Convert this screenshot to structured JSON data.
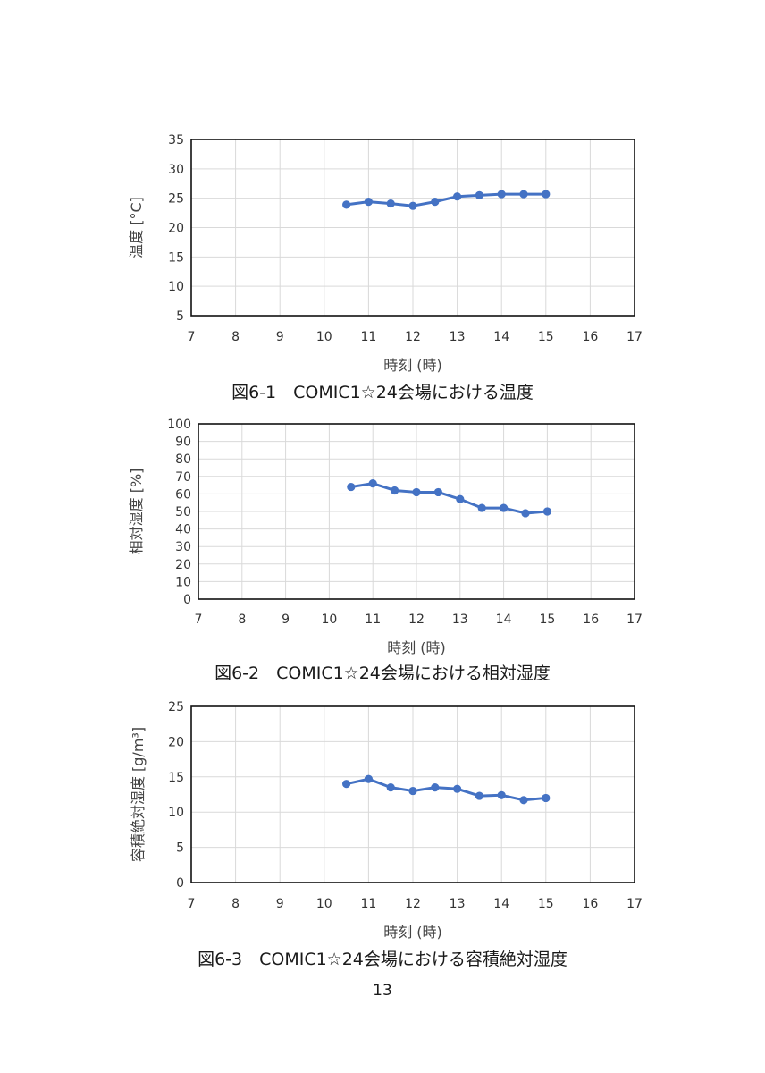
{
  "page_number": "13",
  "chart_data": [
    {
      "type": "line",
      "caption": "図6-1　COMIC1☆24会場における温度",
      "xlabel": "時刻 (時)",
      "ylabel": "温度 [°C]",
      "xlim": [
        7,
        17
      ],
      "ylim": [
        5,
        35
      ],
      "xticks": [
        7,
        8,
        9,
        10,
        11,
        12,
        13,
        14,
        15,
        16,
        17
      ],
      "yticks": [
        5,
        10,
        15,
        20,
        25,
        30,
        35
      ],
      "grid": true,
      "series_color": "#4472C4",
      "x": [
        10.5,
        11,
        11.5,
        12,
        12.5,
        13,
        13.5,
        14,
        14.5,
        15
      ],
      "y": [
        23.9,
        24.4,
        24.1,
        23.7,
        24.4,
        25.3,
        25.5,
        25.7,
        25.7,
        25.7
      ]
    },
    {
      "type": "line",
      "caption": "図6-2　COMIC1☆24会場における相対湿度",
      "xlabel": "時刻 (時)",
      "ylabel": "相対湿度 [%]",
      "xlim": [
        7,
        17
      ],
      "ylim": [
        0,
        100
      ],
      "xticks": [
        7,
        8,
        9,
        10,
        11,
        12,
        13,
        14,
        15,
        16,
        17
      ],
      "yticks": [
        0,
        10,
        20,
        30,
        40,
        50,
        60,
        70,
        80,
        90,
        100
      ],
      "grid": true,
      "series_color": "#4472C4",
      "x": [
        10.5,
        11,
        11.5,
        12,
        12.5,
        13,
        13.5,
        14,
        14.5,
        15
      ],
      "y": [
        64,
        66,
        62,
        61,
        61,
        57,
        52,
        52,
        49,
        50
      ]
    },
    {
      "type": "line",
      "caption": "図6-3　COMIC1☆24会場における容積絶対湿度",
      "xlabel": "時刻 (時)",
      "ylabel": "容積絶対湿度 [g/m³]",
      "xlim": [
        7,
        17
      ],
      "ylim": [
        0,
        25
      ],
      "xticks": [
        7,
        8,
        9,
        10,
        11,
        12,
        13,
        14,
        15,
        16,
        17
      ],
      "yticks": [
        0,
        5,
        10,
        15,
        20,
        25
      ],
      "grid": true,
      "series_color": "#4472C4",
      "x": [
        10.5,
        11,
        11.5,
        12,
        12.5,
        13,
        13.5,
        14,
        14.5,
        15
      ],
      "y": [
        14.0,
        14.7,
        13.5,
        13.0,
        13.5,
        13.3,
        12.3,
        12.4,
        11.7,
        12.0
      ]
    }
  ]
}
